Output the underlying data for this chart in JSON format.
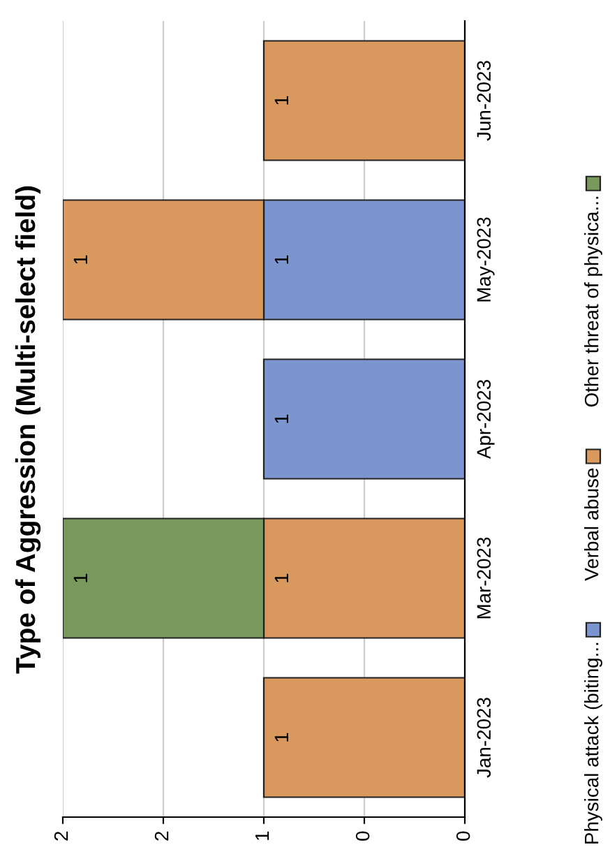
{
  "chart_data": {
    "type": "bar",
    "title": "Type of Aggression (Multi-select field)",
    "orientation": "horizontal",
    "stacked": true,
    "categories": [
      "Jun-2023",
      "May-2023",
      "Apr-2023",
      "Mar-2023",
      "Jan-2023"
    ],
    "series": [
      {
        "name": "Physical attack (biting...",
        "color": "#7d95cf",
        "values": [
          null,
          1,
          1,
          null,
          null
        ]
      },
      {
        "name": "Verbal abuse",
        "color": "#d9985e",
        "values": [
          1,
          1,
          null,
          1,
          1
        ]
      },
      {
        "name": "Other threat of physica...",
        "color": "#78985c",
        "values": [
          null,
          null,
          null,
          1,
          null
        ]
      }
    ],
    "xlim": [
      2,
      0
    ],
    "xticks": [
      2,
      {
        "value": 1.5,
        "label": "2"
      },
      1,
      {
        "value": 0.5,
        "label": "0"
      },
      0
    ],
    "grid": "x",
    "legend": "right",
    "data_labels": true
  }
}
